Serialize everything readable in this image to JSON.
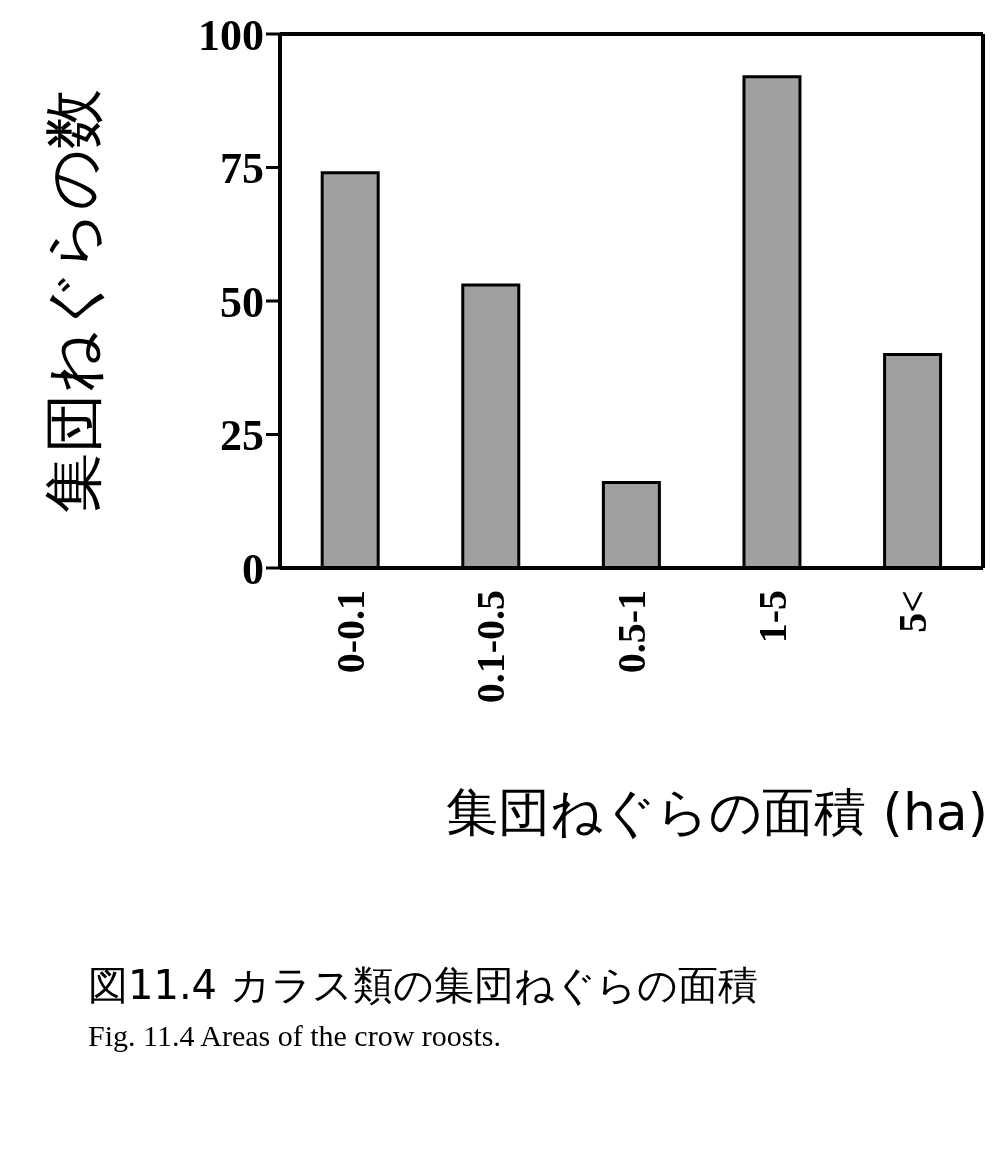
{
  "chart_data": {
    "type": "bar",
    "xlabel": "集団ねぐらの面積 (ha)",
    "ylabel": "集団ねぐらの数",
    "categories": [
      "0-0.1",
      "0.1-0.5",
      "0.5-1",
      "1-5",
      "5<"
    ],
    "values": [
      74,
      53,
      16,
      92,
      40
    ],
    "color": "#a0a0a0",
    "ylim": [
      0,
      100
    ],
    "yticks": [
      0,
      25,
      50,
      75,
      100
    ],
    "grid": false,
    "legend": false,
    "annotations": [
      "図11.4 カラス類の集団ねぐらの面積",
      "Fig. 11.4 Areas of the crow roosts."
    ]
  }
}
